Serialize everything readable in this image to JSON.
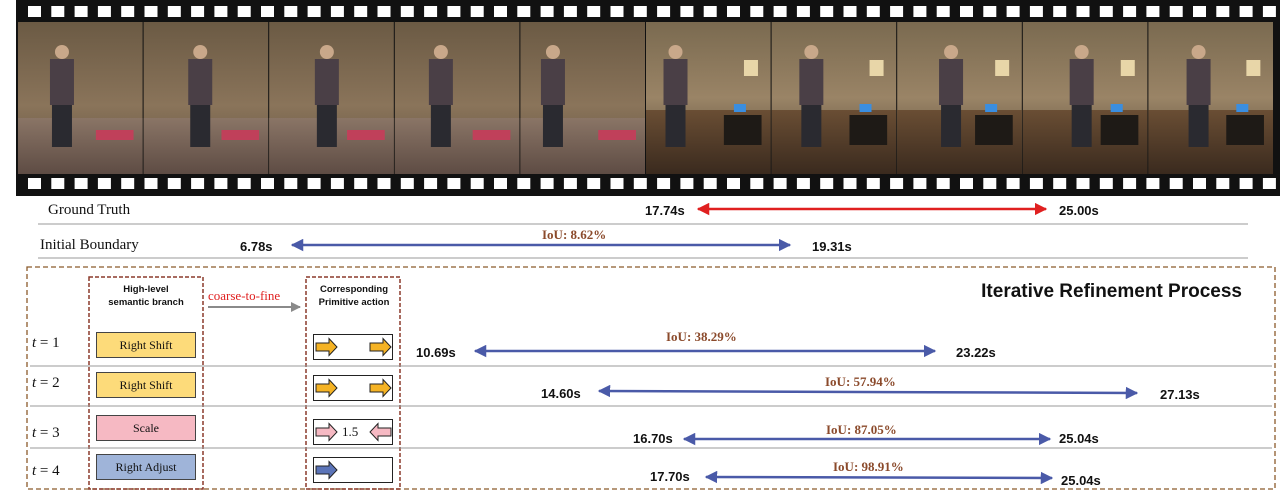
{
  "ground_truth": {
    "label": "Ground Truth",
    "start": "17.74s",
    "end": "25.00s"
  },
  "initial_boundary": {
    "label": "Initial Boundary",
    "start": "6.78s",
    "end": "19.31s",
    "iou": "IoU: 8.62%"
  },
  "panel": {
    "title": "Iterative Refinement Process",
    "semantic_header_1": "High-level",
    "semantic_header_2": "semantic branch",
    "primitive_header_1": "Corresponding",
    "primitive_header_2": "Primitive action",
    "coarse_to_fine": "coarse-to-fine"
  },
  "steps": [
    {
      "t": "t",
      "eq": "= 1",
      "action": "Right Shift",
      "start": "10.69s",
      "end": "23.22s",
      "iou": "IoU: 38.29%"
    },
    {
      "t": "t",
      "eq": "= 2",
      "action": "Right Shift",
      "start": "14.60s",
      "end": "27.13s",
      "iou": "IoU: 57.94%"
    },
    {
      "t": "t",
      "eq": "= 3",
      "action": "Scale",
      "scale_value": "1.5",
      "start": "16.70s",
      "end": "25.04s",
      "iou": "IoU: 87.05%"
    },
    {
      "t": "t",
      "eq": "= 4",
      "action": "Right Adjust",
      "start": "17.70s",
      "end": "25.04s",
      "iou": "IoU: 98.91%"
    }
  ],
  "colors": {
    "gt_arrow": "#e02020",
    "pred_arrow": "#4a5aa8",
    "iou_text": "#8b4a2b",
    "panel_border": "#8b5a2b",
    "coarse_text": "#e02020"
  }
}
